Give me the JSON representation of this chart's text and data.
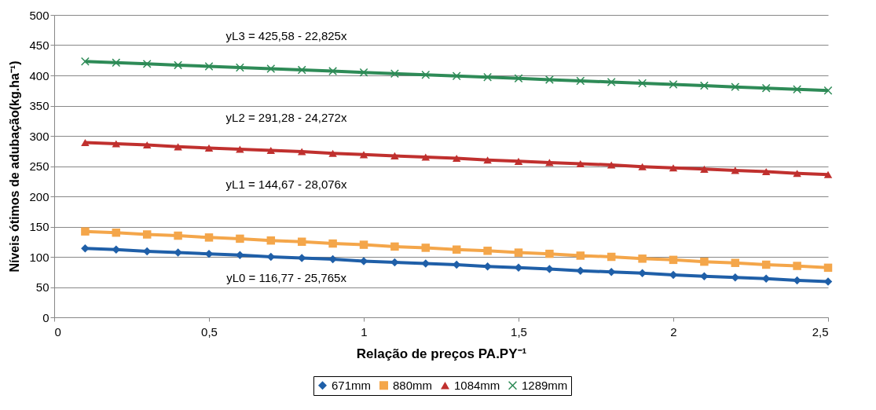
{
  "chart_data": {
    "type": "line",
    "xlabel": "Relação de preços PA.PY⁻¹",
    "ylabel": "Níveis ótimos de adubação(kg.ha⁻¹)",
    "x": [
      0.1,
      0.2,
      0.3,
      0.4,
      0.5,
      0.6,
      0.7,
      0.8,
      0.9,
      1.0,
      1.1,
      1.2,
      1.3,
      1.4,
      1.5,
      1.6,
      1.7,
      1.8,
      1.9,
      2.0,
      2.1,
      2.2,
      2.3,
      2.4,
      2.5
    ],
    "series": [
      {
        "name": "671mm",
        "color": "#1f5fa8",
        "marker": "diamond",
        "values": [
          114,
          112,
          109,
          107,
          105,
          103,
          100,
          98,
          96,
          93,
          91,
          89,
          87,
          84,
          82,
          80,
          77,
          75,
          73,
          70,
          68,
          66,
          64,
          61,
          59
        ]
      },
      {
        "name": "880mm",
        "color": "#f4a64a",
        "marker": "square",
        "values": [
          142,
          140,
          137,
          135,
          132,
          130,
          127,
          125,
          122,
          120,
          117,
          115,
          112,
          110,
          107,
          105,
          102,
          100,
          97,
          95,
          92,
          90,
          87,
          85,
          82
        ]
      },
      {
        "name": "1084mm",
        "color": "#c0302e",
        "marker": "triangle",
        "values": [
          289,
          287,
          285,
          282,
          280,
          278,
          276,
          274,
          271,
          269,
          267,
          265,
          263,
          260,
          258,
          256,
          254,
          252,
          249,
          247,
          245,
          243,
          241,
          238,
          236
        ]
      },
      {
        "name": "1289mm",
        "color": "#2e8b57",
        "marker": "cross",
        "values": [
          423,
          421,
          419,
          417,
          415,
          413,
          411,
          409,
          407,
          405,
          403,
          401,
          399,
          397,
          395,
          393,
          391,
          389,
          387,
          385,
          383,
          381,
          379,
          377,
          375
        ]
      }
    ],
    "annotations": [
      "yL3 = 425,58 - 22,825x",
      "yL2 = 291,28 - 24,272x",
      "yL1 = 144,67 - 28,076x",
      "yL0 = 116,77 - 25,765x"
    ],
    "xlim": [
      0,
      2.5
    ],
    "xticks": [
      0,
      {
        "value": 0.5,
        "label": "0,5"
      },
      1,
      {
        "value": 1.5,
        "label": "1,5"
      },
      2,
      {
        "value": 2.5,
        "label": "2,5"
      }
    ],
    "ylim": [
      0,
      500
    ],
    "yticks": [
      0,
      50,
      100,
      150,
      200,
      250,
      300,
      350,
      400,
      450,
      500
    ],
    "grid": "y",
    "legend": "bottom",
    "line_style": "solid"
  }
}
